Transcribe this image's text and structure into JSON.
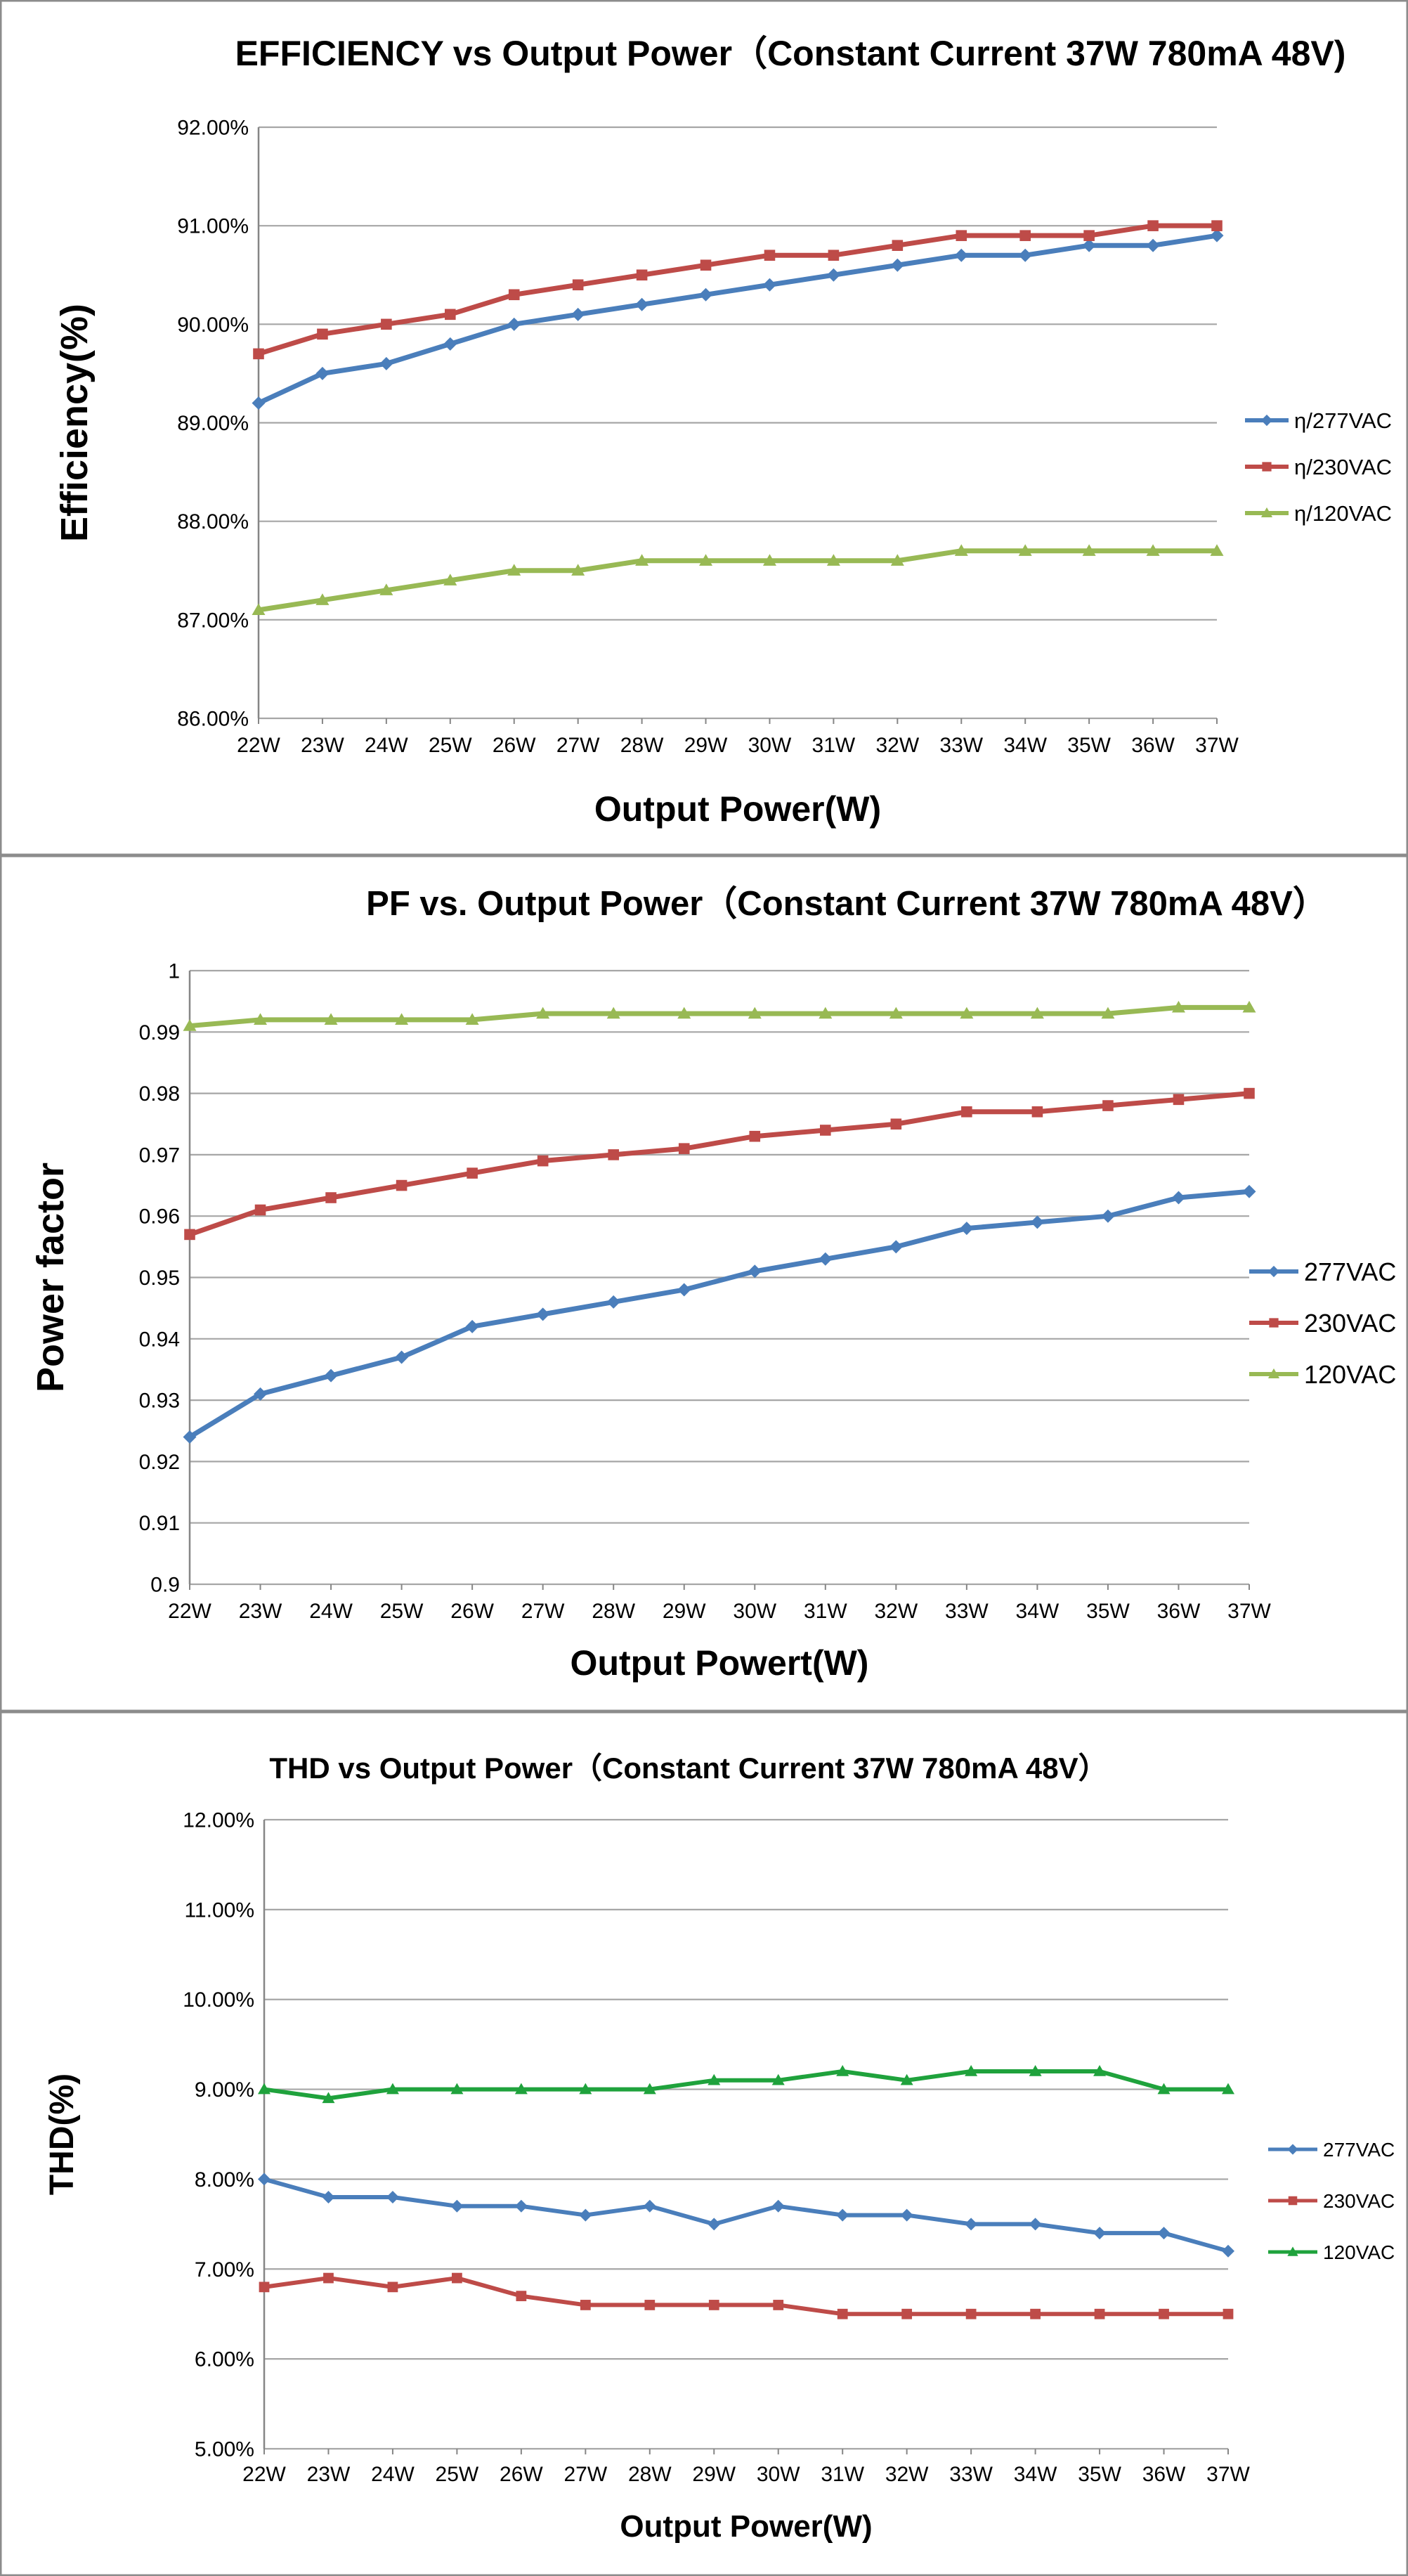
{
  "colors": {
    "s277": "#4A7EBB",
    "s230": "#BE4B48",
    "s120": "#98B954",
    "s120_thd": "#1FA23C",
    "grid": "#A6A6A6",
    "axis": "#868686",
    "border": "#8C8C8C",
    "text": "#000000"
  },
  "chart_data": [
    {
      "type": "line",
      "title": "EFFICIENCY vs Output Power（Constant Current 37W 780mA 48V)",
      "xlabel": "Output Power(W)",
      "ylabel": "Efficiency(%)",
      "categories": [
        "22W",
        "23W",
        "24W",
        "25W",
        "26W",
        "27W",
        "28W",
        "29W",
        "30W",
        "31W",
        "32W",
        "33W",
        "34W",
        "35W",
        "36W",
        "37W"
      ],
      "ylim": [
        86,
        92
      ],
      "ystep": 1,
      "ytick_labels": [
        "86.00%",
        "87.00%",
        "88.00%",
        "89.00%",
        "90.00%",
        "91.00%",
        "92.00%"
      ],
      "grid": true,
      "legend_position": "right",
      "series": [
        {
          "name": "η/277VAC",
          "color": "s277",
          "marker": "diamond",
          "values": [
            89.2,
            89.5,
            89.6,
            89.8,
            90.0,
            90.1,
            90.2,
            90.3,
            90.4,
            90.5,
            90.6,
            90.7,
            90.7,
            90.8,
            90.8,
            90.9
          ]
        },
        {
          "name": "η/230VAC",
          "color": "s230",
          "marker": "square",
          "values": [
            89.7,
            89.9,
            90.0,
            90.1,
            90.3,
            90.4,
            90.5,
            90.6,
            90.7,
            90.7,
            90.8,
            90.9,
            90.9,
            90.9,
            91.0,
            91.0
          ]
        },
        {
          "name": "η/120VAC",
          "color": "s120",
          "marker": "triangle",
          "values": [
            87.1,
            87.2,
            87.3,
            87.4,
            87.5,
            87.5,
            87.6,
            87.6,
            87.6,
            87.6,
            87.6,
            87.7,
            87.7,
            87.7,
            87.7,
            87.7
          ]
        }
      ]
    },
    {
      "type": "line",
      "title": "PF vs. Output Power（Constant Current 37W 780mA 48V）",
      "xlabel": "Output Powert(W)",
      "ylabel": "Power factor",
      "categories": [
        "22W",
        "23W",
        "24W",
        "25W",
        "26W",
        "27W",
        "28W",
        "29W",
        "30W",
        "31W",
        "32W",
        "33W",
        "34W",
        "35W",
        "36W",
        "37W"
      ],
      "ylim": [
        0.9,
        1.0
      ],
      "ystep": 0.01,
      "ytick_labels": [
        "0.9",
        "0.91",
        "0.92",
        "0.93",
        "0.94",
        "0.95",
        "0.96",
        "0.97",
        "0.98",
        "0.99",
        "1"
      ],
      "grid": true,
      "legend_position": "right",
      "series": [
        {
          "name": "277VAC",
          "color": "s277",
          "marker": "diamond",
          "values": [
            0.924,
            0.931,
            0.934,
            0.937,
            0.942,
            0.944,
            0.946,
            0.948,
            0.951,
            0.953,
            0.955,
            0.958,
            0.959,
            0.96,
            0.963,
            0.964
          ]
        },
        {
          "name": "230VAC",
          "color": "s230",
          "marker": "square",
          "values": [
            0.957,
            0.961,
            0.963,
            0.965,
            0.967,
            0.969,
            0.97,
            0.971,
            0.973,
            0.974,
            0.975,
            0.977,
            0.977,
            0.978,
            0.979,
            0.98
          ]
        },
        {
          "name": "120VAC",
          "color": "s120",
          "marker": "triangle",
          "values": [
            0.991,
            0.992,
            0.992,
            0.992,
            0.992,
            0.993,
            0.993,
            0.993,
            0.993,
            0.993,
            0.993,
            0.993,
            0.993,
            0.993,
            0.994,
            0.994
          ]
        }
      ]
    },
    {
      "type": "line",
      "title": "THD vs Output Power（Constant Current 37W  780mA 48V）",
      "xlabel": "Output Power(W)",
      "ylabel": "THD(%)",
      "categories": [
        "22W",
        "23W",
        "24W",
        "25W",
        "26W",
        "27W",
        "28W",
        "29W",
        "30W",
        "31W",
        "32W",
        "33W",
        "34W",
        "35W",
        "36W",
        "37W"
      ],
      "ylim": [
        5,
        12
      ],
      "ystep": 1,
      "ytick_labels": [
        "5.00%",
        "6.00%",
        "7.00%",
        "8.00%",
        "9.00%",
        "10.00%",
        "11.00%",
        "12.00%"
      ],
      "grid": true,
      "legend_position": "right",
      "series": [
        {
          "name": "277VAC",
          "color": "s277",
          "marker": "diamond",
          "values": [
            8.0,
            7.8,
            7.8,
            7.7,
            7.7,
            7.6,
            7.7,
            7.5,
            7.7,
            7.6,
            7.6,
            7.5,
            7.5,
            7.4,
            7.4,
            7.2
          ]
        },
        {
          "name": "230VAC",
          "color": "s230",
          "marker": "square",
          "values": [
            6.8,
            6.9,
            6.8,
            6.9,
            6.7,
            6.6,
            6.6,
            6.6,
            6.6,
            6.5,
            6.5,
            6.5,
            6.5,
            6.5,
            6.5,
            6.5
          ]
        },
        {
          "name": "120VAC",
          "color": "s120_thd",
          "marker": "triangle",
          "values": [
            9.0,
            8.9,
            9.0,
            9.0,
            9.0,
            9.0,
            9.0,
            9.1,
            9.1,
            9.2,
            9.1,
            9.2,
            9.2,
            9.2,
            9.0,
            9.0
          ]
        }
      ]
    }
  ]
}
